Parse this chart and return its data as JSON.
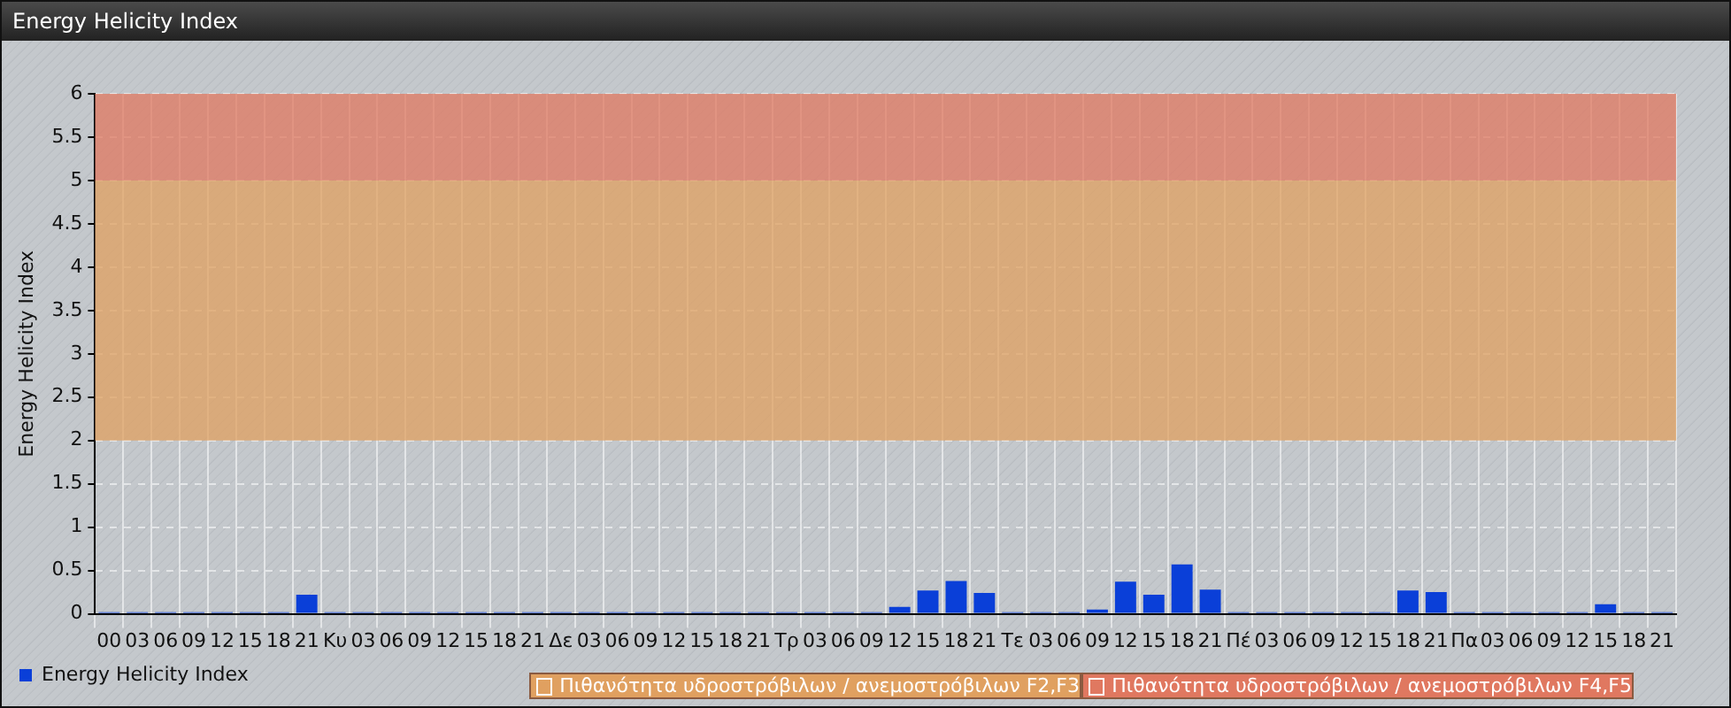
{
  "chart_data": {
    "type": "bar",
    "title": "Energy Helicity Index",
    "ylabel": "Energy Helicity Index",
    "categories": [
      "00",
      "03",
      "06",
      "09",
      "12",
      "15",
      "18",
      "21",
      "Κυ",
      "03",
      "06",
      "09",
      "12",
      "15",
      "18",
      "21",
      "Δε",
      "03",
      "06",
      "09",
      "12",
      "15",
      "18",
      "21",
      "Τρ",
      "03",
      "06",
      "09",
      "12",
      "15",
      "18",
      "21",
      "Τε",
      "03",
      "06",
      "09",
      "12",
      "15",
      "18",
      "21",
      "Πέ",
      "03",
      "06",
      "09",
      "12",
      "15",
      "18",
      "21",
      "Πα",
      "03",
      "06",
      "09",
      "12",
      "15",
      "18",
      "21"
    ],
    "series": [
      {
        "name": "Energy Helicity Index",
        "color": "#0a3fd8",
        "values": [
          0.02,
          0.02,
          0.02,
          0.02,
          0.02,
          0.02,
          0.02,
          0.22,
          0.02,
          0.02,
          0.02,
          0.02,
          0.02,
          0.02,
          0.02,
          0.02,
          0.02,
          0.02,
          0.02,
          0.02,
          0.02,
          0.02,
          0.02,
          0.02,
          0.02,
          0.02,
          0.02,
          0.02,
          0.08,
          0.27,
          0.38,
          0.24,
          0.02,
          0.02,
          0.02,
          0.05,
          0.37,
          0.22,
          0.57,
          0.28,
          0.02,
          0.02,
          0.02,
          0.02,
          0.02,
          0.02,
          0.27,
          0.25,
          0.02,
          0.02,
          0.02,
          0.02,
          0.02,
          0.11,
          0.02,
          0.02
        ]
      }
    ],
    "ylim": [
      0,
      6
    ],
    "yticks": [
      0,
      0.5,
      1,
      1.5,
      2,
      2.5,
      3,
      3.5,
      4,
      4.5,
      5,
      5.5,
      6
    ],
    "bands": [
      {
        "axis": "y",
        "from": 2,
        "to": 5,
        "label": "Πιθανότητα υδροστρόβιλων / ανεμοστρόβιλων F2,F3",
        "color": "#e0a060"
      },
      {
        "axis": "y",
        "from": 5,
        "to": 6,
        "label": "Πιθανότητα υδροστρόβιλων / ανεμοστρόβιλων F4,F5",
        "color": "#e07860"
      }
    ],
    "grid": true,
    "legend": "bottom left"
  }
}
